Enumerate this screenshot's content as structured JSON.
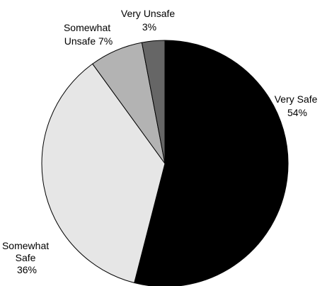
{
  "chart_data": {
    "type": "pie",
    "title": "",
    "start_angle_deg": 0,
    "direction": "clockwise",
    "legend": "none",
    "slices": [
      {
        "label": "Very Safe",
        "value": 54,
        "value_label": "54%",
        "color": "#000000"
      },
      {
        "label": "Somewhat Safe",
        "value": 36,
        "value_label": "36%",
        "color": "#e6e6e6"
      },
      {
        "label": "Somewhat Unsafe",
        "value": 7,
        "value_label": "7%",
        "color": "#b3b3b3"
      },
      {
        "label": "Very Unsafe",
        "value": 3,
        "value_label": "3%",
        "color": "#666666"
      }
    ]
  }
}
